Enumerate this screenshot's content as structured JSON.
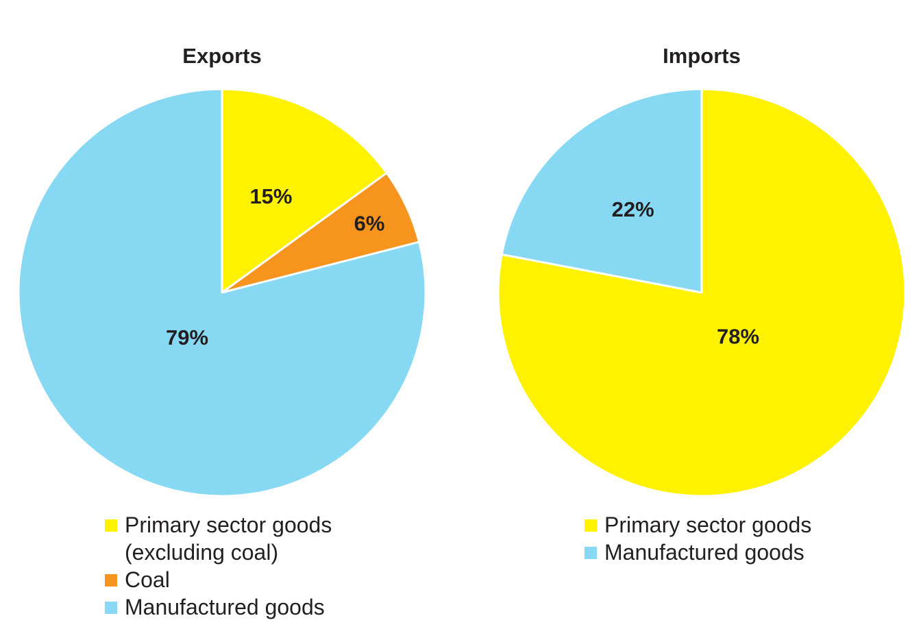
{
  "chart_data": [
    {
      "type": "pie",
      "title": "Exports",
      "slices": [
        {
          "label": "Primary sector goods (excluding coal)",
          "legend_lines": [
            "Primary sector goods",
            "(excluding coal)"
          ],
          "value": 15,
          "value_label": "15%",
          "color": "#fff200"
        },
        {
          "label": "Coal",
          "legend_lines": [
            "Coal"
          ],
          "value": 6,
          "value_label": "6%",
          "color": "#f7941d"
        },
        {
          "label": "Manufactured goods",
          "legend_lines": [
            "Manufactured goods"
          ],
          "value": 79,
          "value_label": "79%",
          "color": "#87d8f3"
        }
      ],
      "start_angle": "12 o'clock",
      "direction": "clockwise",
      "legend_placement": "bottom"
    },
    {
      "type": "pie",
      "title": "Imports",
      "slices": [
        {
          "label": "Primary sector goods",
          "legend_lines": [
            "Primary sector goods"
          ],
          "value": 78,
          "value_label": "78%",
          "color": "#fff200"
        },
        {
          "label": "Manufactured goods",
          "legend_lines": [
            "Manufactured goods"
          ],
          "value": 22,
          "value_label": "22%",
          "color": "#87d8f3"
        }
      ],
      "start_angle": "12 o'clock",
      "direction": "clockwise",
      "legend_placement": "bottom"
    }
  ]
}
